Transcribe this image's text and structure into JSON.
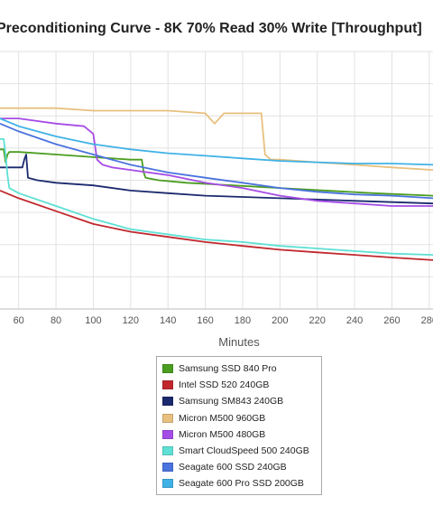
{
  "chart_data": {
    "type": "line",
    "title": "Preconditioning Curve - 8K 70% Read 30% Write [Throughput]",
    "xlabel": "Minutes",
    "x_ticks": [
      60,
      80,
      100,
      120,
      140,
      160,
      180,
      200,
      220,
      240,
      260,
      280
    ],
    "xlim": [
      50,
      282
    ],
    "ylim": [
      0,
      1
    ],
    "y_ticks": [
      0.125,
      0.25,
      0.375,
      0.5,
      0.625,
      0.75,
      0.875,
      1.0
    ],
    "grid": true,
    "legend_position": "bottom-center",
    "series": [
      {
        "name": "Samsung SSD 840 Pro",
        "color": "#4a9d1f",
        "x": [
          50,
          52,
          53,
          54,
          55,
          60,
          80,
          100,
          120,
          126,
          127,
          128,
          135,
          150,
          200,
          250,
          282
        ],
        "y": [
          0.62,
          0.62,
          0.57,
          0.6,
          0.61,
          0.61,
          0.6,
          0.59,
          0.58,
          0.58,
          0.53,
          0.51,
          0.5,
          0.49,
          0.47,
          0.45,
          0.44
        ]
      },
      {
        "name": "Intel SSD 520 240GB",
        "color": "#c0282d",
        "x": [
          50,
          60,
          80,
          100,
          120,
          140,
          160,
          180,
          200,
          220,
          240,
          260,
          282
        ],
        "y": [
          0.46,
          0.43,
          0.38,
          0.33,
          0.3,
          0.28,
          0.26,
          0.245,
          0.23,
          0.22,
          0.21,
          0.2,
          0.19
        ]
      },
      {
        "name": "Samsung SM843 240GB",
        "color": "#1b2a6e",
        "x": [
          50,
          55,
          58,
          60,
          62,
          63,
          64,
          65,
          70,
          80,
          100,
          120,
          140,
          160,
          200,
          240,
          282
        ],
        "y": [
          0.55,
          0.55,
          0.55,
          0.55,
          0.55,
          0.58,
          0.6,
          0.51,
          0.5,
          0.49,
          0.48,
          0.46,
          0.45,
          0.44,
          0.43,
          0.42,
          0.41
        ]
      },
      {
        "name": "Micron M500 960GB",
        "color": "#e8c07f",
        "x": [
          50,
          60,
          80,
          100,
          140,
          160,
          165,
          170,
          190,
          192,
          195,
          200,
          220,
          240,
          260,
          282
        ],
        "y": [
          0.78,
          0.78,
          0.78,
          0.77,
          0.77,
          0.76,
          0.72,
          0.76,
          0.76,
          0.6,
          0.58,
          0.58,
          0.57,
          0.56,
          0.55,
          0.54
        ]
      },
      {
        "name": "Micron M500 480GB",
        "color": "#a64ce6",
        "x": [
          50,
          60,
          80,
          95,
          100,
          102,
          105,
          110,
          120,
          140,
          160,
          180,
          200,
          220,
          240,
          260,
          282
        ],
        "y": [
          0.74,
          0.74,
          0.72,
          0.71,
          0.68,
          0.58,
          0.56,
          0.55,
          0.54,
          0.52,
          0.49,
          0.47,
          0.44,
          0.42,
          0.41,
          0.4,
          0.4
        ]
      },
      {
        "name": "Smart CloudSpeed 500 240GB",
        "color": "#5ee0d4",
        "x": [
          50,
          52,
          53,
          54,
          55,
          60,
          80,
          100,
          120,
          140,
          160,
          180,
          200,
          220,
          240,
          260,
          282
        ],
        "y": [
          0.66,
          0.66,
          0.6,
          0.52,
          0.47,
          0.45,
          0.4,
          0.35,
          0.31,
          0.29,
          0.27,
          0.26,
          0.245,
          0.235,
          0.225,
          0.215,
          0.21
        ]
      },
      {
        "name": "Seagate 600 SSD 240GB",
        "color": "#4a73de",
        "x": [
          50,
          60,
          80,
          100,
          120,
          140,
          160,
          180,
          200,
          220,
          240,
          260,
          282
        ],
        "y": [
          0.72,
          0.69,
          0.64,
          0.6,
          0.56,
          0.53,
          0.51,
          0.49,
          0.47,
          0.455,
          0.445,
          0.44,
          0.43
        ]
      },
      {
        "name": "Seagate 600 Pro SSD 200GB",
        "color": "#40b2e6",
        "x": [
          50,
          60,
          80,
          100,
          120,
          140,
          160,
          180,
          200,
          220,
          240,
          260,
          282
        ],
        "y": [
          0.74,
          0.71,
          0.67,
          0.64,
          0.62,
          0.605,
          0.595,
          0.585,
          0.575,
          0.57,
          0.565,
          0.565,
          0.56
        ]
      }
    ]
  }
}
